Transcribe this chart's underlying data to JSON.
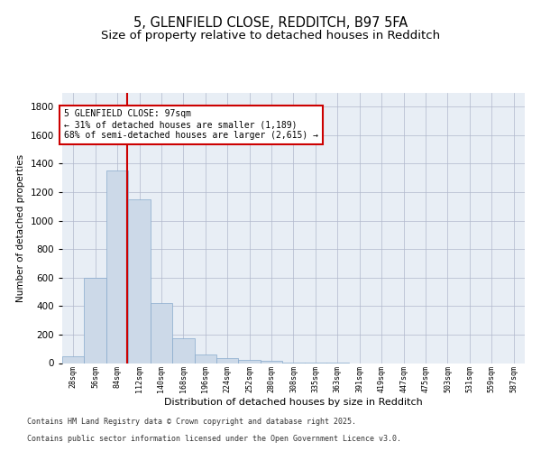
{
  "title1": "5, GLENFIELD CLOSE, REDDITCH, B97 5FA",
  "title2": "Size of property relative to detached houses in Redditch",
  "xlabel": "Distribution of detached houses by size in Redditch",
  "ylabel": "Number of detached properties",
  "bin_labels": [
    "28sqm",
    "56sqm",
    "84sqm",
    "112sqm",
    "140sqm",
    "168sqm",
    "196sqm",
    "224sqm",
    "252sqm",
    "280sqm",
    "308sqm",
    "335sqm",
    "363sqm",
    "391sqm",
    "419sqm",
    "447sqm",
    "475sqm",
    "503sqm",
    "531sqm",
    "559sqm",
    "587sqm"
  ],
  "bin_starts": [
    14,
    42,
    70,
    98,
    126,
    154,
    182,
    210,
    238,
    266,
    294,
    322,
    350,
    378,
    406,
    434,
    462,
    490,
    518,
    546,
    574
  ],
  "bin_width": 28,
  "bar_values": [
    50,
    600,
    1350,
    1150,
    420,
    175,
    60,
    35,
    25,
    15,
    5,
    2,
    1,
    0,
    0,
    0,
    0,
    0,
    0,
    0,
    0
  ],
  "bar_color": "#ccd9e8",
  "bar_edge_color": "#88aacc",
  "property_size": 97,
  "vline_color": "#cc0000",
  "annotation_box_color": "#cc0000",
  "annotation_line1": "5 GLENFIELD CLOSE: 97sqm",
  "annotation_line2": "← 31% of detached houses are smaller (1,189)",
  "annotation_line3": "68% of semi-detached houses are larger (2,615) →",
  "ylim": [
    0,
    1900
  ],
  "yticks": [
    0,
    200,
    400,
    600,
    800,
    1000,
    1200,
    1400,
    1600,
    1800
  ],
  "grid_color": "#b0b8cc",
  "background_color": "#e8eef5",
  "footer_line1": "Contains HM Land Registry data © Crown copyright and database right 2025.",
  "footer_line2": "Contains public sector information licensed under the Open Government Licence v3.0.",
  "title1_fontsize": 10.5,
  "title2_fontsize": 9.5,
  "annotation_fontsize": 7,
  "ylabel_fontsize": 7.5,
  "xlabel_fontsize": 8,
  "ytick_fontsize": 7.5,
  "xtick_fontsize": 6
}
